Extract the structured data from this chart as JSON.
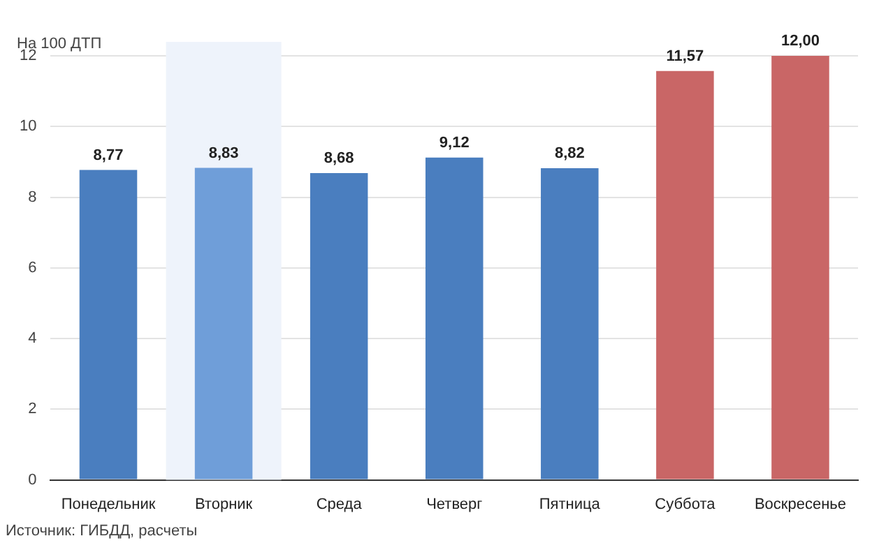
{
  "chart_data": {
    "type": "bar",
    "ylabel": "На 100 ДТП",
    "categories": [
      "Понедельник",
      "Вторник",
      "Среда",
      "Четверг",
      "Пятница",
      "Суббота",
      "Воскресенье"
    ],
    "values": [
      8.77,
      8.83,
      8.68,
      9.12,
      8.82,
      11.57,
      12.0
    ],
    "value_labels": [
      "8,77",
      "8,83",
      "8,68",
      "9,12",
      "8,82",
      "11,57",
      "12,00"
    ],
    "colors": [
      "#4a7ebf",
      "#6f9ed9",
      "#4a7ebf",
      "#4a7ebf",
      "#4a7ebf",
      "#c96666",
      "#c96666"
    ],
    "ylim": [
      0,
      12
    ],
    "yticks": [
      0,
      2,
      4,
      6,
      8,
      10,
      12
    ],
    "grid": "y",
    "legend": false,
    "bands": [
      {
        "axis": "x",
        "from": "Вторник",
        "to": "Вторник",
        "color": "#eef3fb"
      }
    ],
    "annotations": [
      "Источник: ГИБДД, расчеты"
    ]
  }
}
